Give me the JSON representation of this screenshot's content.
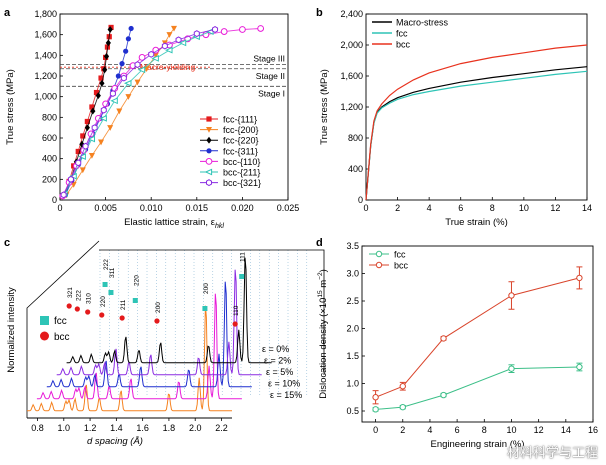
{
  "colors": {
    "axis": "#000000",
    "red": "#e41a1c",
    "orange": "#f58220",
    "black": "#000000",
    "blue": "#1f2fcf",
    "magenta": "#e81ad8",
    "cyan": "#2ec4b6",
    "purple": "#8a2be2",
    "macro": "#000000",
    "fcc": "#2ec4b6",
    "bcc": "#e8321e",
    "dd_fcc": "#3cbf88",
    "dd_bcc": "#d9442b",
    "dashed": "#444444",
    "macro_yield": "#e8321e"
  },
  "watermark": "材料科学与工程",
  "chart_data": [
    {
      "panel": "a",
      "type": "scatter",
      "xlabel": "Elastic lattice strain, ε",
      "xlabel_sub": "hkl",
      "ylabel": "True stress (MPa)",
      "xlim": [
        0,
        0.025
      ],
      "ylim": [
        0,
        1800
      ],
      "xticks": [
        "0",
        "0.005",
        "0.010",
        "0.015",
        "0.020",
        "0.025"
      ],
      "yticks": [
        "0",
        "200",
        "400",
        "600",
        "800",
        "1,000",
        "1,200",
        "1,400",
        "1,600",
        "1,800"
      ],
      "annotations": {
        "stage3": "Stage III",
        "stage2": "Stage II",
        "stage1": "Stage I",
        "macro": "Macro-yielding"
      },
      "stage_lines": [
        1100,
        1270,
        1310
      ],
      "macro_yield": 1285,
      "series": [
        {
          "name": "fcc-{111}",
          "marker": "square",
          "color_key": "red",
          "x": [
            0.0005,
            0.001,
            0.0015,
            0.002,
            0.0025,
            0.003,
            0.0035,
            0.004,
            0.0045,
            0.0048,
            0.005,
            0.0052,
            0.0054,
            0.0056
          ],
          "y": [
            50,
            180,
            330,
            470,
            620,
            760,
            900,
            1040,
            1180,
            1270,
            1380,
            1480,
            1580,
            1670
          ]
        },
        {
          "name": "fcc-{200}",
          "marker": "tri_down",
          "color_key": "orange",
          "x": [
            0.0007,
            0.0015,
            0.0025,
            0.0035,
            0.0045,
            0.0055,
            0.0065,
            0.0075,
            0.0085,
            0.0095,
            0.0105,
            0.0115,
            0.012,
            0.0125
          ],
          "y": [
            50,
            150,
            290,
            430,
            560,
            700,
            860,
            1000,
            1140,
            1270,
            1400,
            1520,
            1600,
            1660
          ]
        },
        {
          "name": "fcc-{220}",
          "marker": "diamond",
          "color_key": "black",
          "x": [
            0.0006,
            0.0012,
            0.0018,
            0.0024,
            0.003,
            0.0036,
            0.0042,
            0.0046,
            0.0049,
            0.0051,
            0.0053,
            0.0055
          ],
          "y": [
            60,
            200,
            370,
            540,
            700,
            860,
            1010,
            1130,
            1260,
            1390,
            1520,
            1650
          ]
        },
        {
          "name": "fcc-{311}",
          "marker": "circle",
          "color_key": "blue",
          "x": [
            0.0006,
            0.0013,
            0.002,
            0.0028,
            0.0036,
            0.0044,
            0.0052,
            0.0058,
            0.0064,
            0.0068,
            0.0072,
            0.0075,
            0.0078
          ],
          "y": [
            50,
            190,
            340,
            490,
            640,
            790,
            930,
            1060,
            1200,
            1320,
            1440,
            1560,
            1660
          ]
        },
        {
          "name": "bcc-{110}",
          "marker": "circle_open",
          "color_key": "magenta",
          "x": [
            0.0003,
            0.001,
            0.0018,
            0.0026,
            0.0034,
            0.0042,
            0.005,
            0.006,
            0.007,
            0.008,
            0.009,
            0.0105,
            0.012,
            0.014,
            0.016,
            0.018,
            0.02,
            0.022
          ],
          "y": [
            40,
            170,
            330,
            480,
            640,
            790,
            930,
            1080,
            1200,
            1300,
            1380,
            1450,
            1500,
            1560,
            1600,
            1630,
            1650,
            1660
          ]
        },
        {
          "name": "bcc-{211}",
          "marker": "tri_left_open",
          "color_key": "cyan",
          "x": [
            0.0005,
            0.0015,
            0.0025,
            0.0035,
            0.0048,
            0.006,
            0.0075,
            0.009,
            0.0105,
            0.012,
            0.0135,
            0.015,
            0.0165
          ],
          "y": [
            60,
            230,
            420,
            590,
            790,
            960,
            1130,
            1260,
            1370,
            1450,
            1520,
            1580,
            1630
          ]
        },
        {
          "name": "bcc-{321}",
          "marker": "hex_open",
          "color_key": "purple",
          "x": [
            0.0004,
            0.0012,
            0.002,
            0.0028,
            0.0038,
            0.0048,
            0.0058,
            0.007,
            0.0085,
            0.01,
            0.0115,
            0.013,
            0.015,
            0.017
          ],
          "y": [
            50,
            200,
            360,
            520,
            700,
            870,
            1030,
            1180,
            1310,
            1410,
            1490,
            1550,
            1610,
            1650
          ]
        }
      ]
    },
    {
      "panel": "b",
      "type": "line",
      "xlabel": "True strain (%)",
      "ylabel": "True stress (MPa)",
      "xlim": [
        0,
        14
      ],
      "ylim": [
        0,
        2400
      ],
      "xticks": [
        "0",
        "2",
        "4",
        "6",
        "8",
        "10",
        "12",
        "14"
      ],
      "yticks": [
        "0",
        "400",
        "800",
        "1,200",
        "1,600",
        "2,000",
        "2,400"
      ],
      "series": [
        {
          "name": "Macro-stress",
          "color_key": "macro",
          "x": [
            0,
            0.3,
            0.5,
            0.7,
            1,
            1.5,
            2,
            3,
            4,
            6,
            8,
            10,
            12,
            14
          ],
          "y": [
            0,
            700,
            1000,
            1130,
            1200,
            1270,
            1320,
            1390,
            1440,
            1520,
            1580,
            1630,
            1680,
            1720
          ]
        },
        {
          "name": "fcc",
          "color_key": "fcc",
          "x": [
            0,
            0.3,
            0.5,
            0.7,
            1,
            1.5,
            2,
            3,
            4,
            6,
            8,
            10,
            12,
            14
          ],
          "y": [
            0,
            700,
            990,
            1120,
            1190,
            1250,
            1300,
            1360,
            1400,
            1470,
            1520,
            1570,
            1620,
            1660
          ]
        },
        {
          "name": "bcc",
          "color_key": "bcc",
          "x": [
            0,
            0.3,
            0.5,
            0.7,
            1,
            1.5,
            2,
            3,
            4,
            6,
            8,
            10,
            12,
            14
          ],
          "y": [
            0,
            720,
            1020,
            1150,
            1240,
            1350,
            1430,
            1550,
            1640,
            1760,
            1840,
            1900,
            1960,
            2000
          ]
        }
      ]
    },
    {
      "panel": "c",
      "type": "line",
      "xlabel": "d spacing (Å)",
      "ylabel": "Normalized intensity",
      "xlim": [
        0.72,
        2.28
      ],
      "xticks": [
        "0.8",
        "1.0",
        "1.2",
        "1.4",
        "1.6",
        "1.8",
        "2.0",
        "2.2"
      ],
      "strain_labels": [
        "ε = 0%",
        "ε = 2%",
        "ε = 5%",
        "ε = 10%",
        "ε = 15%"
      ],
      "legend": {
        "fcc": "fcc",
        "bcc": "bcc"
      },
      "peak_labels": {
        "fcc": [
          {
            "label": "111",
            "d": 2.08
          },
          {
            "label": "200",
            "d": 1.8
          },
          {
            "label": "220",
            "d": 1.27
          },
          {
            "label": "311",
            "d": 1.085
          },
          {
            "label": "222",
            "d": 1.04
          }
        ],
        "bcc": [
          {
            "label": "110",
            "d": 2.03
          },
          {
            "label": "200",
            "d": 1.435
          },
          {
            "label": "211",
            "d": 1.17
          },
          {
            "label": "220",
            "d": 1.015
          },
          {
            "label": "310",
            "d": 0.908
          },
          {
            "label": "222",
            "d": 0.829
          },
          {
            "label": "321",
            "d": 0.767
          }
        ]
      },
      "peak_heights": [
        0.1,
        0.12,
        0.14,
        0.16,
        0.18,
        0.2,
        0.45,
        0.22,
        0.35,
        0.3,
        0.55,
        1.0,
        0.85
      ],
      "series": [
        {
          "name": "ε = 0%",
          "color_key": "orange"
        },
        {
          "name": "ε = 2%",
          "color_key": "magenta"
        },
        {
          "name": "ε = 5%",
          "color_key": "blue"
        },
        {
          "name": "ε = 10%",
          "color_key": "purple"
        },
        {
          "name": "ε = 15%",
          "color_key": "black"
        }
      ]
    },
    {
      "panel": "d",
      "type": "line",
      "xlabel": "Engineering strain (%)",
      "ylabel": "Dislocation density (×10",
      "ylabel_sup": "15",
      "ylabel_tail": " m",
      "ylabel_sup2": "−2",
      "ylabel_end": ")",
      "xlim": [
        -1,
        16
      ],
      "ylim": [
        0.3,
        3.5
      ],
      "xticks": [
        "0",
        "2",
        "4",
        "6",
        "8",
        "10",
        "12",
        "14",
        "16"
      ],
      "yticks": [
        "0.5",
        "1.0",
        "1.5",
        "2.0",
        "2.5",
        "3.0",
        "3.5"
      ],
      "series": [
        {
          "name": "fcc",
          "color_key": "dd_fcc",
          "x": [
            0,
            2,
            5,
            10,
            15
          ],
          "y": [
            0.53,
            0.57,
            0.79,
            1.27,
            1.3
          ],
          "err": [
            0.03,
            0.03,
            0.03,
            0.07,
            0.07
          ]
        },
        {
          "name": "bcc",
          "color_key": "dd_bcc",
          "x": [
            0,
            2,
            5,
            10,
            15
          ],
          "y": [
            0.75,
            0.95,
            1.82,
            2.6,
            2.92
          ],
          "err": [
            0.12,
            0.07,
            0.03,
            0.25,
            0.2
          ]
        }
      ]
    }
  ]
}
